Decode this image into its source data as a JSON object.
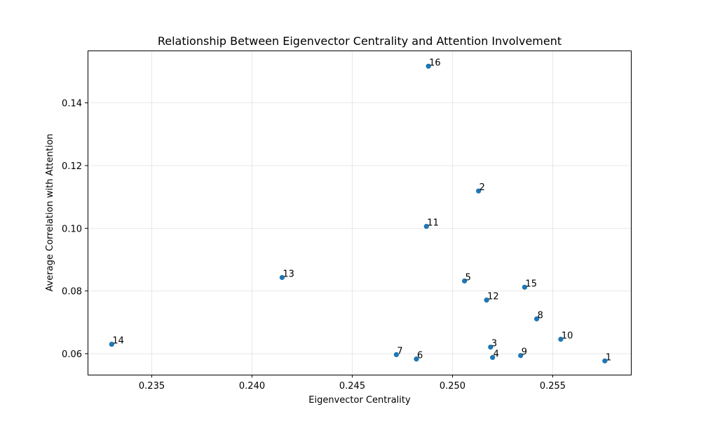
{
  "chart_data": {
    "type": "scatter",
    "title": "Relationship Between Eigenvector Centrality and Attention Involvement",
    "xlabel": "Eigenvector Centrality",
    "ylabel": "Average Correlation with Attention",
    "xlim": [
      0.2318,
      0.2589
    ],
    "ylim": [
      0.0533,
      0.1567
    ],
    "xticks": [
      0.235,
      0.24,
      0.245,
      0.25,
      0.255
    ],
    "xtick_labels": [
      "0.235",
      "0.240",
      "0.245",
      "0.250",
      "0.255"
    ],
    "yticks": [
      0.06,
      0.08,
      0.1,
      0.12,
      0.14
    ],
    "ytick_labels": [
      "0.06",
      "0.08",
      "0.10",
      "0.12",
      "0.14"
    ],
    "grid": true,
    "marker_color": "#1f77b4",
    "points": [
      {
        "label": "1",
        "x": 0.2576,
        "y": 0.0577
      },
      {
        "label": "2",
        "x": 0.2513,
        "y": 0.1119
      },
      {
        "label": "3",
        "x": 0.2519,
        "y": 0.0621
      },
      {
        "label": "4",
        "x": 0.252,
        "y": 0.0588
      },
      {
        "label": "5",
        "x": 0.2506,
        "y": 0.0832
      },
      {
        "label": "6",
        "x": 0.2482,
        "y": 0.0583
      },
      {
        "label": "7",
        "x": 0.2472,
        "y": 0.0597
      },
      {
        "label": "8",
        "x": 0.2542,
        "y": 0.0711
      },
      {
        "label": "9",
        "x": 0.2534,
        "y": 0.0594
      },
      {
        "label": "10",
        "x": 0.2554,
        "y": 0.0646
      },
      {
        "label": "11",
        "x": 0.2487,
        "y": 0.1006
      },
      {
        "label": "12",
        "x": 0.2517,
        "y": 0.0771
      },
      {
        "label": "13",
        "x": 0.2415,
        "y": 0.0843
      },
      {
        "label": "14",
        "x": 0.233,
        "y": 0.063
      },
      {
        "label": "15",
        "x": 0.2536,
        "y": 0.0812
      },
      {
        "label": "16",
        "x": 0.2488,
        "y": 0.1517
      }
    ]
  }
}
